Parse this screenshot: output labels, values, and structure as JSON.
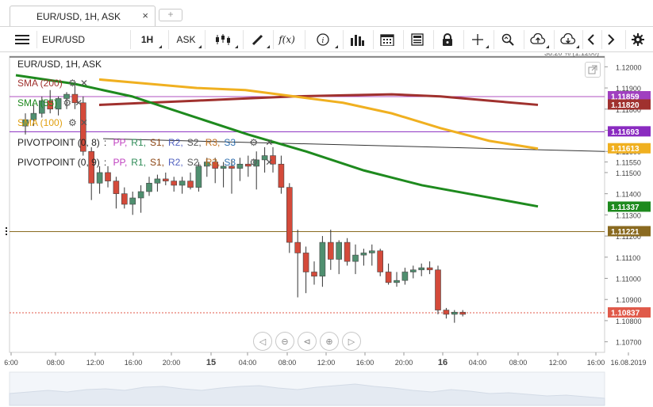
{
  "tab": {
    "title": "EUR/USD, 1H, ASK",
    "close": "×",
    "new_tab": "+"
  },
  "toolbar": {
    "symbol": "EUR/USD",
    "timeframe": "1H",
    "side": "ASK",
    "formula_label": "f(x)",
    "icons": [
      "menu-icon",
      "candles-icon",
      "draw-icon",
      "formula-icon",
      "info-icon",
      "bars-icon",
      "calendar-icon",
      "news-icon",
      "lock-icon",
      "crosshair-icon",
      "zoom-icon",
      "upload-icon",
      "download-icon",
      "chevron-left-icon",
      "chevron-right-icon",
      "gear-icon"
    ]
  },
  "legend": {
    "series": "EUR/USD, 1H, ASK",
    "sma200": "SMA (200)",
    "sma55": "SMA (55)",
    "sma100": "SMA (100)",
    "pivot1_label": "PIVOTPOINT (0, 8)",
    "pivot2_label": "PIVOTPOINT (0, 9)",
    "pivot_items": [
      {
        "text": "PP,",
        "color": "#c040c0"
      },
      {
        "text": "R1,",
        "color": "#2e8b57"
      },
      {
        "text": "S1,",
        "color": "#8b4513"
      },
      {
        "text": "R2,",
        "color": "#5060c0"
      },
      {
        "text": "S2,",
        "color": "#555555"
      },
      {
        "text": "R3,",
        "color": "#c07020"
      },
      {
        "text": "S3",
        "color": "#3070b0"
      }
    ]
  },
  "price_axis": {
    "top_label": "38.20 % (1.1200)",
    "ticks": [
      "1.12000",
      "1.11900",
      "1.11800",
      "1.11700",
      "1.11600",
      "1.11550",
      "1.11500",
      "1.11400",
      "1.11300",
      "1.11200",
      "1.11100",
      "1.11000",
      "1.10900",
      "1.10800",
      "1.10700"
    ],
    "badges": [
      {
        "value": "1.11859",
        "color": "#a040c0",
        "price": 1.11859
      },
      {
        "value": "1.11820",
        "color": "#a0312e",
        "price": 1.1182
      },
      {
        "value": "1.11693",
        "color": "#8a2bc0",
        "price": 1.11693
      },
      {
        "value": "1.11613",
        "color": "#f0b020",
        "price": 1.11613
      },
      {
        "value": "1.11337",
        "color": "#1e8a1e",
        "price": 1.11337
      },
      {
        "value": "1.11221",
        "color": "#8a6a20",
        "price": 1.11221
      },
      {
        "value": "1.10837",
        "color": "#e05a4a",
        "price": 1.10837
      }
    ]
  },
  "time_axis": {
    "labels": [
      "6:00",
      "08:00",
      "12:00",
      "16:00",
      "20:00",
      "15",
      "04:00",
      "08:00",
      "12:00",
      "16:00",
      "20:00",
      "16",
      "04:00",
      "08:00",
      "12:00",
      "16:00",
      "16.08.2019"
    ]
  },
  "colors": {
    "bull": "#4f8f6f",
    "bear": "#d44a3a",
    "sma200": "#a0312e",
    "sma55": "#1e8a1e",
    "sma100": "#f0b020"
  },
  "chart_data": {
    "type": "candlestick",
    "title": "EUR/USD, 1H, ASK",
    "ylim": [
      1.1065,
      1.1205
    ],
    "candles": [
      {
        "o": 1.1172,
        "h": 1.1178,
        "l": 1.1168,
        "c": 1.1175
      },
      {
        "o": 1.1175,
        "h": 1.1182,
        "l": 1.1172,
        "c": 1.1178
      },
      {
        "o": 1.1178,
        "h": 1.1186,
        "l": 1.1176,
        "c": 1.1184
      },
      {
        "o": 1.1184,
        "h": 1.1189,
        "l": 1.1178,
        "c": 1.118
      },
      {
        "o": 1.118,
        "h": 1.1186,
        "l": 1.1177,
        "c": 1.1185
      },
      {
        "o": 1.1185,
        "h": 1.1188,
        "l": 1.118,
        "c": 1.1187
      },
      {
        "o": 1.1187,
        "h": 1.1191,
        "l": 1.118,
        "c": 1.1183
      },
      {
        "o": 1.1183,
        "h": 1.1186,
        "l": 1.1158,
        "c": 1.116
      },
      {
        "o": 1.116,
        "h": 1.1162,
        "l": 1.1137,
        "c": 1.1145
      },
      {
        "o": 1.1145,
        "h": 1.1153,
        "l": 1.114,
        "c": 1.115
      },
      {
        "o": 1.115,
        "h": 1.1153,
        "l": 1.1143,
        "c": 1.1146
      },
      {
        "o": 1.1146,
        "h": 1.1148,
        "l": 1.1133,
        "c": 1.114
      },
      {
        "o": 1.114,
        "h": 1.1143,
        "l": 1.1133,
        "c": 1.1135
      },
      {
        "o": 1.1135,
        "h": 1.1141,
        "l": 1.113,
        "c": 1.1138
      },
      {
        "o": 1.1138,
        "h": 1.1144,
        "l": 1.1131,
        "c": 1.1141
      },
      {
        "o": 1.1141,
        "h": 1.1148,
        "l": 1.1139,
        "c": 1.1145
      },
      {
        "o": 1.1145,
        "h": 1.1149,
        "l": 1.1141,
        "c": 1.1147
      },
      {
        "o": 1.1147,
        "h": 1.115,
        "l": 1.1144,
        "c": 1.1146
      },
      {
        "o": 1.1146,
        "h": 1.1148,
        "l": 1.1141,
        "c": 1.1144
      },
      {
        "o": 1.1144,
        "h": 1.1148,
        "l": 1.114,
        "c": 1.1146
      },
      {
        "o": 1.1146,
        "h": 1.115,
        "l": 1.1142,
        "c": 1.1143
      },
      {
        "o": 1.1143,
        "h": 1.1155,
        "l": 1.1141,
        "c": 1.1153
      },
      {
        "o": 1.1153,
        "h": 1.1157,
        "l": 1.1148,
        "c": 1.1155
      },
      {
        "o": 1.1155,
        "h": 1.1157,
        "l": 1.1145,
        "c": 1.1152
      },
      {
        "o": 1.1152,
        "h": 1.1155,
        "l": 1.1143,
        "c": 1.1153
      },
      {
        "o": 1.1153,
        "h": 1.1156,
        "l": 1.114,
        "c": 1.1152
      },
      {
        "o": 1.1152,
        "h": 1.1157,
        "l": 1.1146,
        "c": 1.1154
      },
      {
        "o": 1.1154,
        "h": 1.1158,
        "l": 1.1148,
        "c": 1.1153
      },
      {
        "o": 1.1153,
        "h": 1.116,
        "l": 1.1142,
        "c": 1.1156
      },
      {
        "o": 1.1156,
        "h": 1.1162,
        "l": 1.115,
        "c": 1.1158
      },
      {
        "o": 1.1158,
        "h": 1.1162,
        "l": 1.115,
        "c": 1.1154
      },
      {
        "o": 1.1154,
        "h": 1.1158,
        "l": 1.114,
        "c": 1.1143
      },
      {
        "o": 1.1143,
        "h": 1.1145,
        "l": 1.1112,
        "c": 1.1117
      },
      {
        "o": 1.1117,
        "h": 1.1123,
        "l": 1.1091,
        "c": 1.1112
      },
      {
        "o": 1.1112,
        "h": 1.1115,
        "l": 1.1093,
        "c": 1.1103
      },
      {
        "o": 1.1103,
        "h": 1.1108,
        "l": 1.1097,
        "c": 1.1101
      },
      {
        "o": 1.1101,
        "h": 1.112,
        "l": 1.1096,
        "c": 1.1117
      },
      {
        "o": 1.1117,
        "h": 1.1123,
        "l": 1.1104,
        "c": 1.1109
      },
      {
        "o": 1.1109,
        "h": 1.1118,
        "l": 1.1102,
        "c": 1.1117
      },
      {
        "o": 1.1117,
        "h": 1.1119,
        "l": 1.1106,
        "c": 1.1108
      },
      {
        "o": 1.1108,
        "h": 1.1116,
        "l": 1.1102,
        "c": 1.1111
      },
      {
        "o": 1.1111,
        "h": 1.1114,
        "l": 1.1106,
        "c": 1.1112
      },
      {
        "o": 1.1112,
        "h": 1.1116,
        "l": 1.1106,
        "c": 1.1113
      },
      {
        "o": 1.1113,
        "h": 1.1114,
        "l": 1.1101,
        "c": 1.1103
      },
      {
        "o": 1.1103,
        "h": 1.1107,
        "l": 1.1097,
        "c": 1.1098
      },
      {
        "o": 1.1098,
        "h": 1.1103,
        "l": 1.1096,
        "c": 1.1099
      },
      {
        "o": 1.1099,
        "h": 1.1105,
        "l": 1.1097,
        "c": 1.1103
      },
      {
        "o": 1.1103,
        "h": 1.1106,
        "l": 1.11,
        "c": 1.1104
      },
      {
        "o": 1.1104,
        "h": 1.1107,
        "l": 1.1101,
        "c": 1.1105
      },
      {
        "o": 1.1105,
        "h": 1.1108,
        "l": 1.1102,
        "c": 1.1104
      },
      {
        "o": 1.1104,
        "h": 1.1106,
        "l": 1.1083,
        "c": 1.1085
      },
      {
        "o": 1.1085,
        "h": 1.1086,
        "l": 1.1081,
        "c": 1.1083
      },
      {
        "o": 1.1083,
        "h": 1.1085,
        "l": 1.1079,
        "c": 1.1084
      },
      {
        "o": 1.1084,
        "h": 1.1085,
        "l": 1.1082,
        "c": 1.1083
      }
    ],
    "sma200": [
      1.1182,
      1.1183,
      1.1184,
      1.1185,
      1.1186,
      1.11865,
      1.1187,
      1.1186,
      1.1184,
      1.1182
    ],
    "sma55": [
      1.1196,
      1.1192,
      1.1186,
      1.1177,
      1.1168,
      1.116,
      1.1151,
      1.1144,
      1.1139,
      1.1134
    ],
    "sma100": [
      1.1194,
      1.1192,
      1.119,
      1.1189,
      1.1186,
      1.1183,
      1.1178,
      1.1171,
      1.1165,
      1.11613
    ]
  }
}
